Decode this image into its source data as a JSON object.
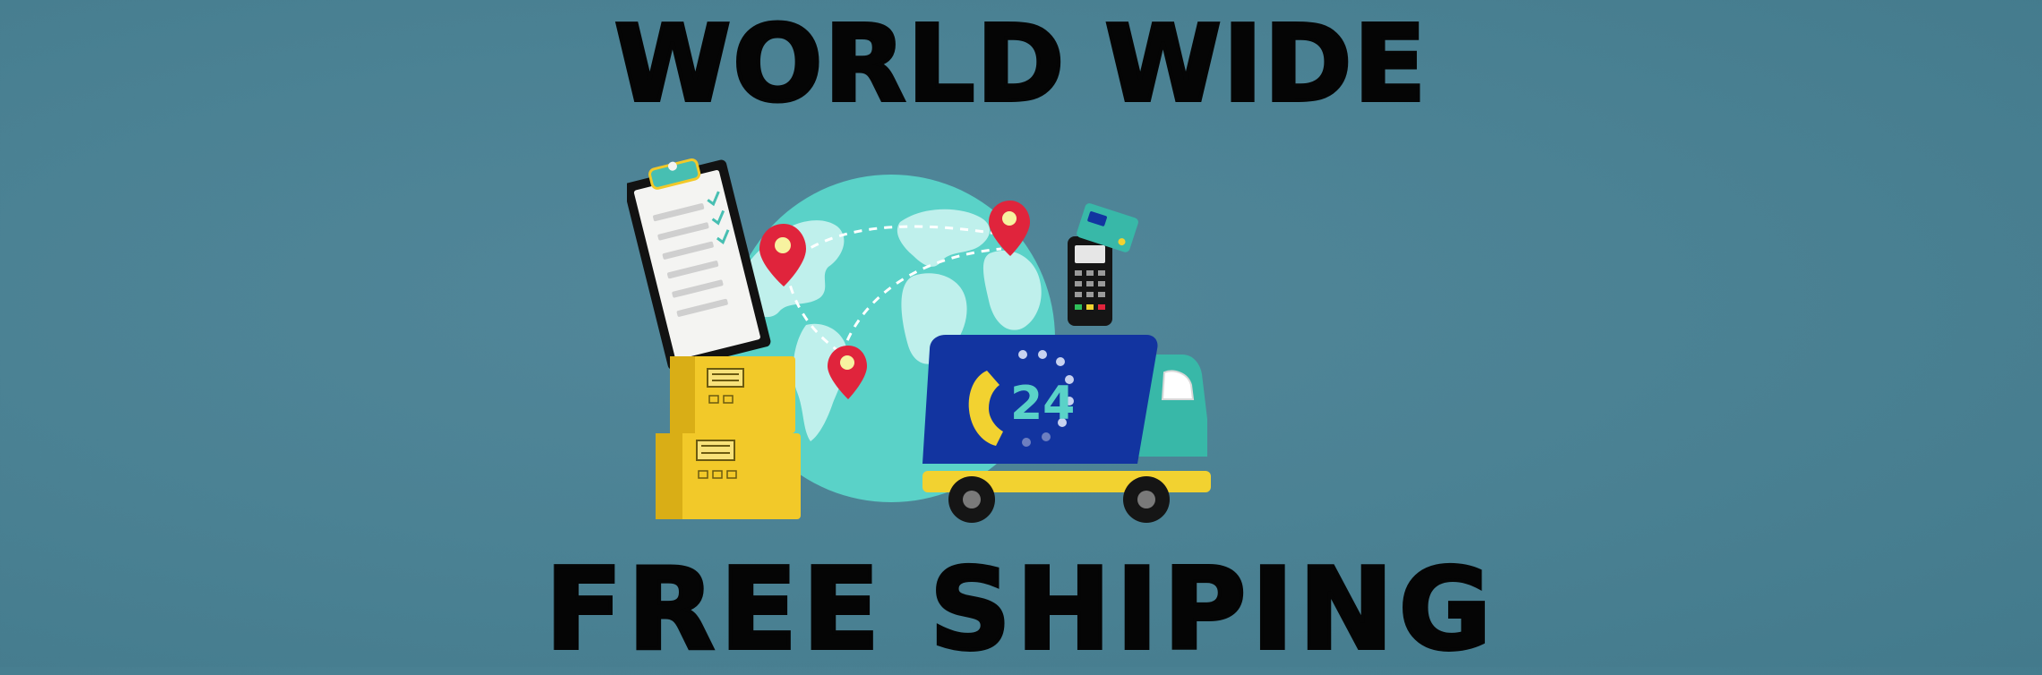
{
  "banner": {
    "headline_top": "WORLD WIDE",
    "headline_bottom": "FREE SHIPING",
    "truck_badge_text": "24"
  },
  "colors": {
    "background": "#4a8193",
    "text": "#050505",
    "globe_ocean": "#5ad2c8",
    "globe_land": "#bff0ec",
    "pin": "#e0243c",
    "box": "#f2c929",
    "truck_cargo": "#1234a0",
    "truck_cab": "#38b8a8",
    "truck_chassis": "#f2d230"
  },
  "icons": [
    "clipboard-icon",
    "globe-icon",
    "map-pin-icon",
    "cardboard-box-icon",
    "delivery-truck-icon",
    "phone-icon",
    "card-terminal-icon"
  ]
}
